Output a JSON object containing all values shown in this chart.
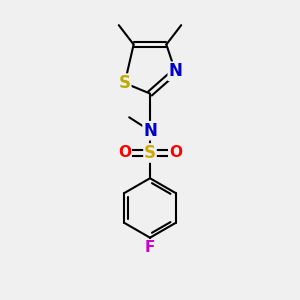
{
  "bg_color": "#f0f0f0",
  "atom_colors": {
    "C": "#000000",
    "N": "#0000cc",
    "S_thiazole": "#bbaa00",
    "S_sulfonyl": "#ccaa00",
    "O": "#ff0000",
    "F": "#cc00cc"
  },
  "bond_color": "#000000",
  "bond_width": 1.5,
  "fig_w": 3.0,
  "fig_h": 3.0,
  "dpi": 100
}
